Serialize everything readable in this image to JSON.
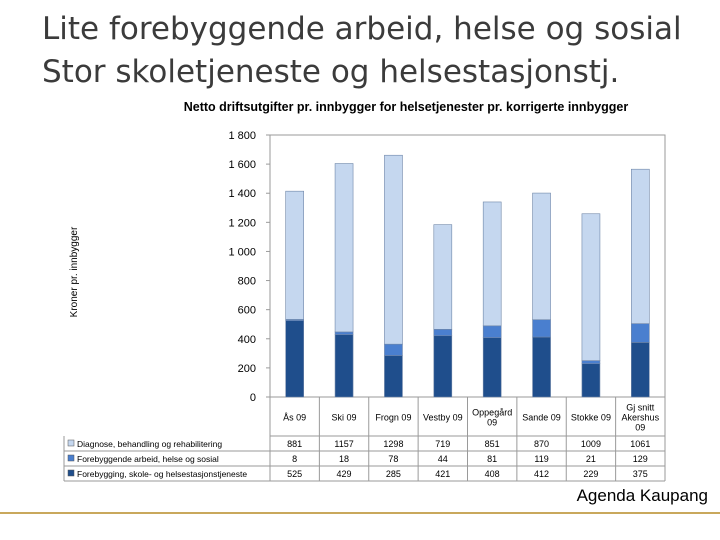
{
  "slide": {
    "title_line1": "Lite forebyggende arbeid, helse og sosial",
    "title_line2": "Stor skoletjeneste og helsestasjonstj.",
    "footer": "Agenda Kaupang",
    "accent_color": "#c9a85c"
  },
  "chart_data": {
    "type": "bar",
    "stacked": true,
    "title": "Netto driftsutgifter pr. innbygger for helsetjenester pr. korrigerte innbygger",
    "ylabel": "Kroner pr. innbygger",
    "xlabel": "",
    "ylim": [
      0,
      1800
    ],
    "yticks": [
      "1 800",
      "1 600",
      "1 400",
      "1 200",
      "1 000",
      "800",
      "600",
      "400",
      "200",
      "0"
    ],
    "ytick_values": [
      1800,
      1600,
      1400,
      1200,
      1000,
      800,
      600,
      400,
      200,
      0
    ],
    "grid": false,
    "legend": "table-below",
    "categories": [
      [
        "Ås 09"
      ],
      [
        "Ski 09"
      ],
      [
        "Frogn 09"
      ],
      [
        "Vestby 09"
      ],
      [
        "Oppegård",
        "09"
      ],
      [
        "Sande 09"
      ],
      [
        "Stokke 09"
      ],
      [
        "Gj snitt",
        "Akershus",
        "09"
      ]
    ],
    "series": [
      {
        "name": "Forebygging, skole- og helsestasjonstjeneste",
        "color": "#1f4e8c",
        "values": [
          525,
          429,
          285,
          421,
          408,
          412,
          229,
          375
        ]
      },
      {
        "name": "Forebyggende arbeid, helse og sosial",
        "color": "#4a7fcf",
        "values": [
          8,
          18,
          78,
          44,
          81,
          119,
          21,
          129
        ]
      },
      {
        "name": "Diagnose, behandling og rehabilitering",
        "color": "#c5d7ef",
        "values": [
          881,
          1157,
          1298,
          719,
          851,
          870,
          1009,
          1061
        ]
      }
    ],
    "table_rows": [
      {
        "name": "Diagnose, behandling og rehabilitering",
        "color": "#c5d7ef",
        "cells": [
          "881",
          "1157",
          "1298",
          "719",
          "851",
          "870",
          "1009",
          "1061"
        ]
      },
      {
        "name": "Forebyggende arbeid, helse og sosial",
        "color": "#4a7fcf",
        "cells": [
          "8",
          "18",
          "78",
          "44",
          "81",
          "119",
          "21",
          "129"
        ]
      },
      {
        "name": "Forebygging, skole- og helsestasjonstjeneste",
        "color": "#1f4e8c",
        "cells": [
          "525",
          "429",
          "285",
          "421",
          "408",
          "412",
          "229",
          "375"
        ]
      }
    ]
  }
}
